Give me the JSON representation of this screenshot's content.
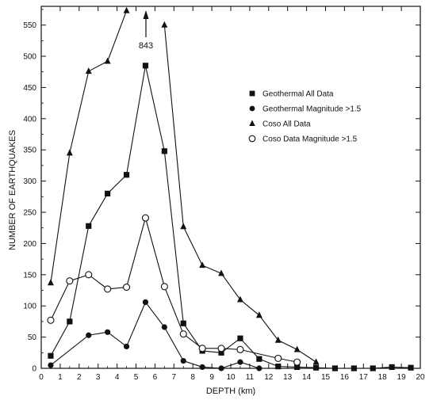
{
  "chart_data": {
    "type": "line",
    "xlabel": "DEPTH (km)",
    "ylabel": "NUMBER OF EARTHQUAKES",
    "xlim": [
      0,
      20
    ],
    "ylim": [
      0,
      580
    ],
    "xticks": [
      "0",
      "1",
      "2",
      "3",
      "4",
      "5",
      "6",
      "7",
      "8",
      "9",
      "10",
      "11",
      "12",
      "13",
      "14",
      "15",
      "16",
      "17",
      "18",
      "19",
      "20"
    ],
    "yticks": [
      "0",
      "50",
      "100",
      "150",
      "200",
      "250",
      "300",
      "350",
      "400",
      "450",
      "500",
      "550"
    ],
    "grid": false,
    "legend_position": "upper-right",
    "annotation": "843",
    "series": [
      {
        "name": "Geothermal All Data",
        "marker": "square",
        "fill": "#111111",
        "x": [
          0.5,
          1.5,
          2.5,
          3.5,
          4.5,
          5.5,
          6.5,
          7.5,
          8.5,
          9.5,
          10.5,
          11.5,
          12.5,
          13.5,
          14.5,
          15.5,
          16.5,
          17.5,
          18.5,
          19.5
        ],
        "y": [
          20,
          75,
          228,
          280,
          310,
          485,
          348,
          72,
          28,
          25,
          48,
          15,
          3,
          2,
          1,
          0,
          0,
          0,
          2,
          1
        ]
      },
      {
        "name": "Geothermal Magnitude >1.5",
        "marker": "circle",
        "fill": "#111111",
        "x": [
          0.5,
          2.5,
          3.5,
          4.5,
          5.5,
          6.5,
          7.5,
          8.5,
          9.5,
          10.5,
          11.5
        ],
        "y": [
          5,
          53,
          58,
          35,
          106,
          66,
          12,
          2,
          0,
          10,
          0
        ]
      },
      {
        "name": "Coso All Data",
        "marker": "triangle",
        "fill": "#111111",
        "x": [
          0.5,
          1.5,
          2.5,
          3.5,
          4.5,
          6.5,
          7.5,
          8.5,
          9.5,
          10.5,
          11.5,
          12.5,
          13.5,
          14.5
        ],
        "y": [
          137,
          345,
          476,
          492,
          573,
          550,
          227,
          165,
          152,
          110,
          85,
          45,
          30,
          10
        ]
      },
      {
        "name": "Coso Data Magnitude >1.5",
        "marker": "open-circle",
        "fill": "#ffffff",
        "x": [
          0.5,
          1.5,
          2.5,
          3.5,
          4.5,
          5.5,
          6.5,
          7.5,
          8.5,
          9.5,
          10.5,
          12.5,
          13.5
        ],
        "y": [
          77,
          140,
          150,
          127,
          130,
          241,
          131,
          55,
          32,
          32,
          30,
          16,
          10
        ]
      }
    ]
  }
}
